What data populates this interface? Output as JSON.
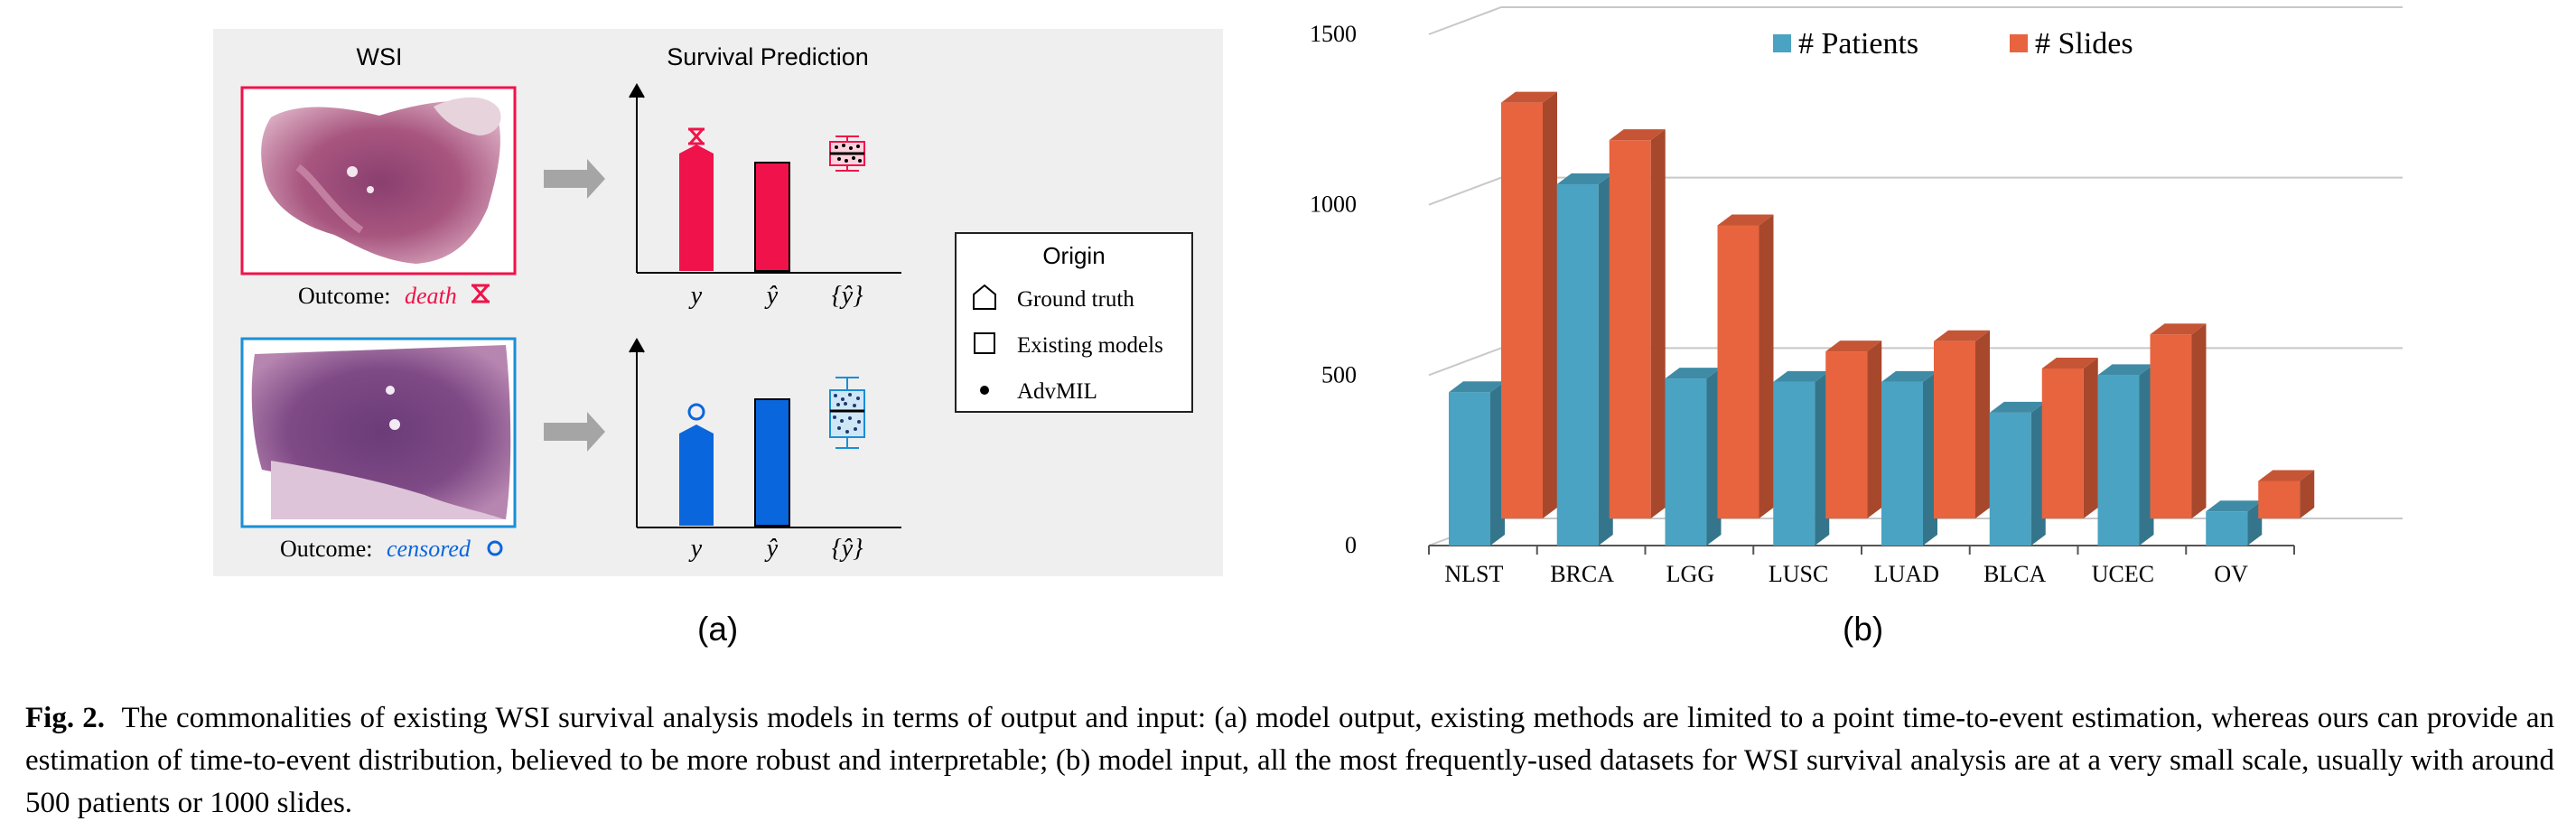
{
  "panel_a": {
    "wsi_title": "WSI",
    "prediction_title": "Survival Prediction",
    "outcome_prefix": "Outcome:",
    "outcome_death": "death",
    "outcome_censored": "censored",
    "axis_labels": [
      "y",
      "ŷ",
      "{ŷ}"
    ],
    "legend": {
      "title": "Origin",
      "items": [
        "Ground truth",
        "Existing models",
        "AdvMIL"
      ]
    },
    "colors": {
      "death": "#f0124a",
      "censored": "#0a66dc",
      "censored_light": "#1a8fd6"
    },
    "label": "(a)"
  },
  "panel_b": {
    "label": "(b)"
  },
  "chart_data": {
    "type": "bar",
    "title": "",
    "categories": [
      "NLST",
      "BRCA",
      "LGG",
      "LUSC",
      "LUAD",
      "BLCA",
      "UCEC",
      "OV"
    ],
    "series": [
      {
        "name": "# Patients",
        "color": "#4aa3c2",
        "values": [
          450,
          1060,
          490,
          480,
          480,
          390,
          500,
          100
        ]
      },
      {
        "name": "# Slides",
        "color": "#e8643e",
        "values": [
          1220,
          1110,
          860,
          490,
          520,
          440,
          540,
          110
        ]
      }
    ],
    "yticks": [
      0,
      500,
      1000,
      1500
    ],
    "ylim": [
      0,
      1500
    ],
    "legend_position": "top",
    "grid": true
  },
  "caption": {
    "label": "Fig. 2.",
    "text": "The commonalities of existing WSI survival analysis models in terms of output and input: (a) model output, existing methods are limited to a point time-to-event estimation, whereas ours can provide an estimation of time-to-event distribution, believed to be more robust and interpretable; (b) model input, all the most frequently-used datasets for WSI survival analysis are at a very small scale, usually with around 500 patients or 1000 slides."
  }
}
